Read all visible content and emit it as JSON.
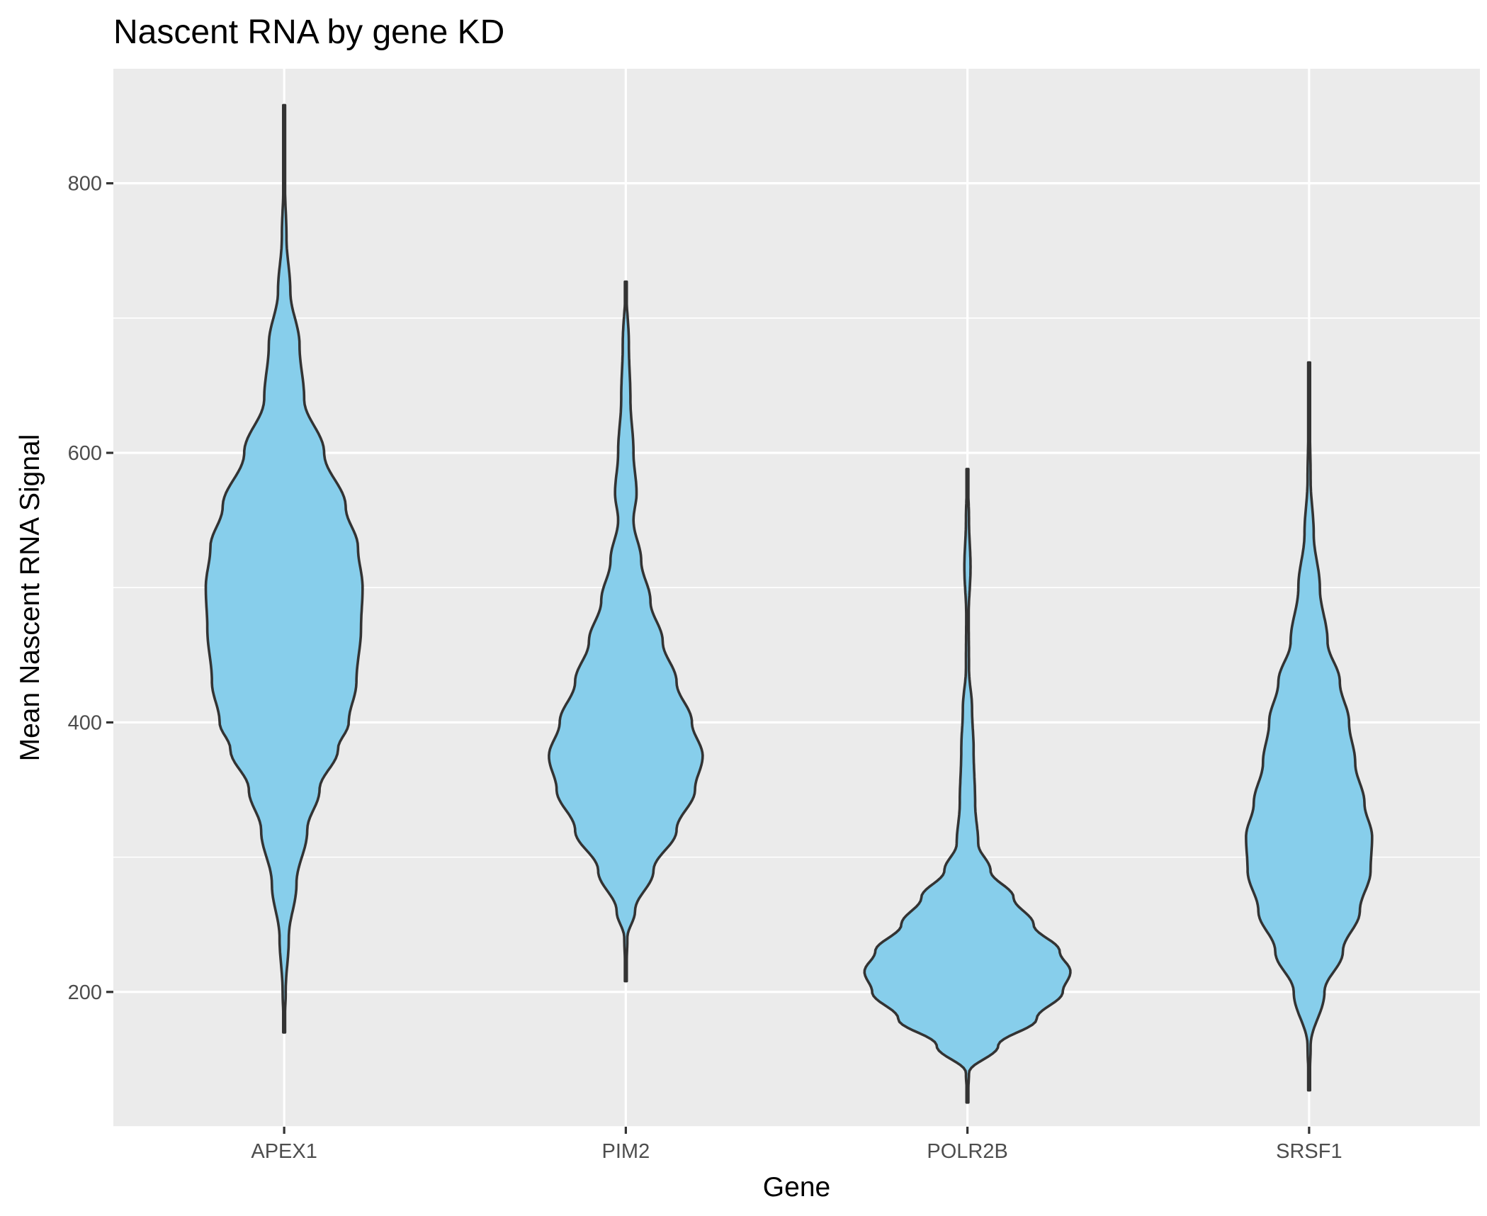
{
  "chart_data": {
    "type": "violin",
    "title": "Nascent RNA by gene KD",
    "xlabel": "Gene",
    "ylabel": "Mean Nascent RNA Signal",
    "categories": [
      "APEX1",
      "PIM2",
      "POLR2B",
      "SRSF1"
    ],
    "y_ticks": [
      200,
      400,
      600,
      800
    ],
    "ylim": [
      100,
      885
    ],
    "grid": true,
    "legend": "none",
    "fill_color": "#87CEEB",
    "outline_color": "#333333",
    "panel_color": "#EBEBEB",
    "series": [
      {
        "category": "APEX1",
        "min": 170,
        "max": 858,
        "profile": [
          [
            170,
            0.0
          ],
          [
            200,
            0.01
          ],
          [
            240,
            0.03
          ],
          [
            280,
            0.08
          ],
          [
            320,
            0.15
          ],
          [
            350,
            0.23
          ],
          [
            380,
            0.35
          ],
          [
            400,
            0.42
          ],
          [
            430,
            0.47
          ],
          [
            470,
            0.5
          ],
          [
            500,
            0.51
          ],
          [
            530,
            0.48
          ],
          [
            560,
            0.4
          ],
          [
            600,
            0.26
          ],
          [
            640,
            0.13
          ],
          [
            680,
            0.1
          ],
          [
            720,
            0.04
          ],
          [
            760,
            0.015
          ],
          [
            800,
            0.005
          ],
          [
            858,
            0.0
          ]
        ]
      },
      {
        "category": "PIM2",
        "min": 208,
        "max": 727,
        "profile": [
          [
            208,
            0.0
          ],
          [
            240,
            0.01
          ],
          [
            260,
            0.06
          ],
          [
            290,
            0.18
          ],
          [
            320,
            0.33
          ],
          [
            350,
            0.45
          ],
          [
            375,
            0.5
          ],
          [
            400,
            0.43
          ],
          [
            430,
            0.33
          ],
          [
            460,
            0.24
          ],
          [
            490,
            0.16
          ],
          [
            520,
            0.1
          ],
          [
            550,
            0.05
          ],
          [
            570,
            0.07
          ],
          [
            600,
            0.05
          ],
          [
            640,
            0.03
          ],
          [
            680,
            0.02
          ],
          [
            727,
            0.0
          ]
        ]
      },
      {
        "category": "POLR2B",
        "min": 118,
        "max": 588,
        "profile": [
          [
            118,
            0.0
          ],
          [
            140,
            0.01
          ],
          [
            160,
            0.2
          ],
          [
            180,
            0.45
          ],
          [
            200,
            0.62
          ],
          [
            215,
            0.67
          ],
          [
            230,
            0.6
          ],
          [
            250,
            0.43
          ],
          [
            270,
            0.3
          ],
          [
            290,
            0.15
          ],
          [
            310,
            0.07
          ],
          [
            340,
            0.05
          ],
          [
            380,
            0.04
          ],
          [
            410,
            0.03
          ],
          [
            440,
            0.01
          ],
          [
            480,
            0.008
          ],
          [
            515,
            0.02
          ],
          [
            550,
            0.01
          ],
          [
            588,
            0.0
          ]
        ]
      },
      {
        "category": "SRSF1",
        "min": 127,
        "max": 667,
        "profile": [
          [
            127,
            0.0
          ],
          [
            160,
            0.01
          ],
          [
            200,
            0.1
          ],
          [
            230,
            0.22
          ],
          [
            260,
            0.33
          ],
          [
            290,
            0.4
          ],
          [
            315,
            0.41
          ],
          [
            340,
            0.36
          ],
          [
            370,
            0.3
          ],
          [
            400,
            0.26
          ],
          [
            430,
            0.2
          ],
          [
            460,
            0.12
          ],
          [
            500,
            0.07
          ],
          [
            540,
            0.03
          ],
          [
            580,
            0.01
          ],
          [
            620,
            0.005
          ],
          [
            667,
            0.0
          ]
        ]
      }
    ]
  }
}
